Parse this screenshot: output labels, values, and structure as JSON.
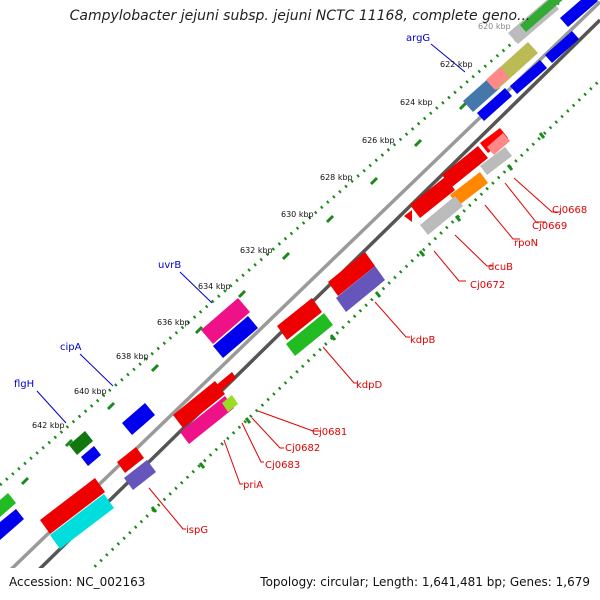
{
  "title": "Campylobacter jejuni subsp. jejuni NCTC 11168, complete geno...",
  "footer": {
    "accession_label": "Accession:",
    "accession": "NC_002163",
    "topology_label": "Topology:",
    "topology": "circular;",
    "length_label": "Length:",
    "length": "1,641,481 bp;",
    "genes_label": "Genes:",
    "genes": "1,679"
  },
  "ticks": [
    "620 kbp",
    "622 kbp",
    "624 kbp",
    "626 kbp",
    "628 kbp",
    "630 kbp",
    "632 kbp",
    "634 kbp",
    "636 kbp",
    "638 kbp",
    "640 kbp",
    "642 kbp"
  ],
  "outer_gene_labels": [
    "argG",
    "uvrB",
    "cipA",
    "flgH"
  ],
  "inner_gene_labels": [
    "Cj0668",
    "Cj0669",
    "rpoN",
    "dcuB",
    "Cj0672",
    "kdpB",
    "kdpD",
    "Cj0681",
    "Cj0682",
    "Cj0683",
    "priA",
    "ispG"
  ],
  "colors": {
    "outer_label": "#0000cc",
    "inner_label": "#e00000",
    "backbone": "#999999",
    "dots": "#1a8a1a",
    "gene_blue": "#0000ee",
    "gene_red": "#ee0000",
    "gene_magenta": "#ee1188",
    "gene_green": "#22bb22",
    "gene_darkgreen": "#117711",
    "gene_violet": "#6655bb",
    "gene_cyan": "#00dddd",
    "gene_orange": "#ff8800",
    "gene_gray": "#bbbbbb",
    "gene_steel": "#4477aa",
    "gene_olive": "#bbbb55",
    "gene_pink": "#ff8888",
    "gene_lime": "#99dd22"
  }
}
